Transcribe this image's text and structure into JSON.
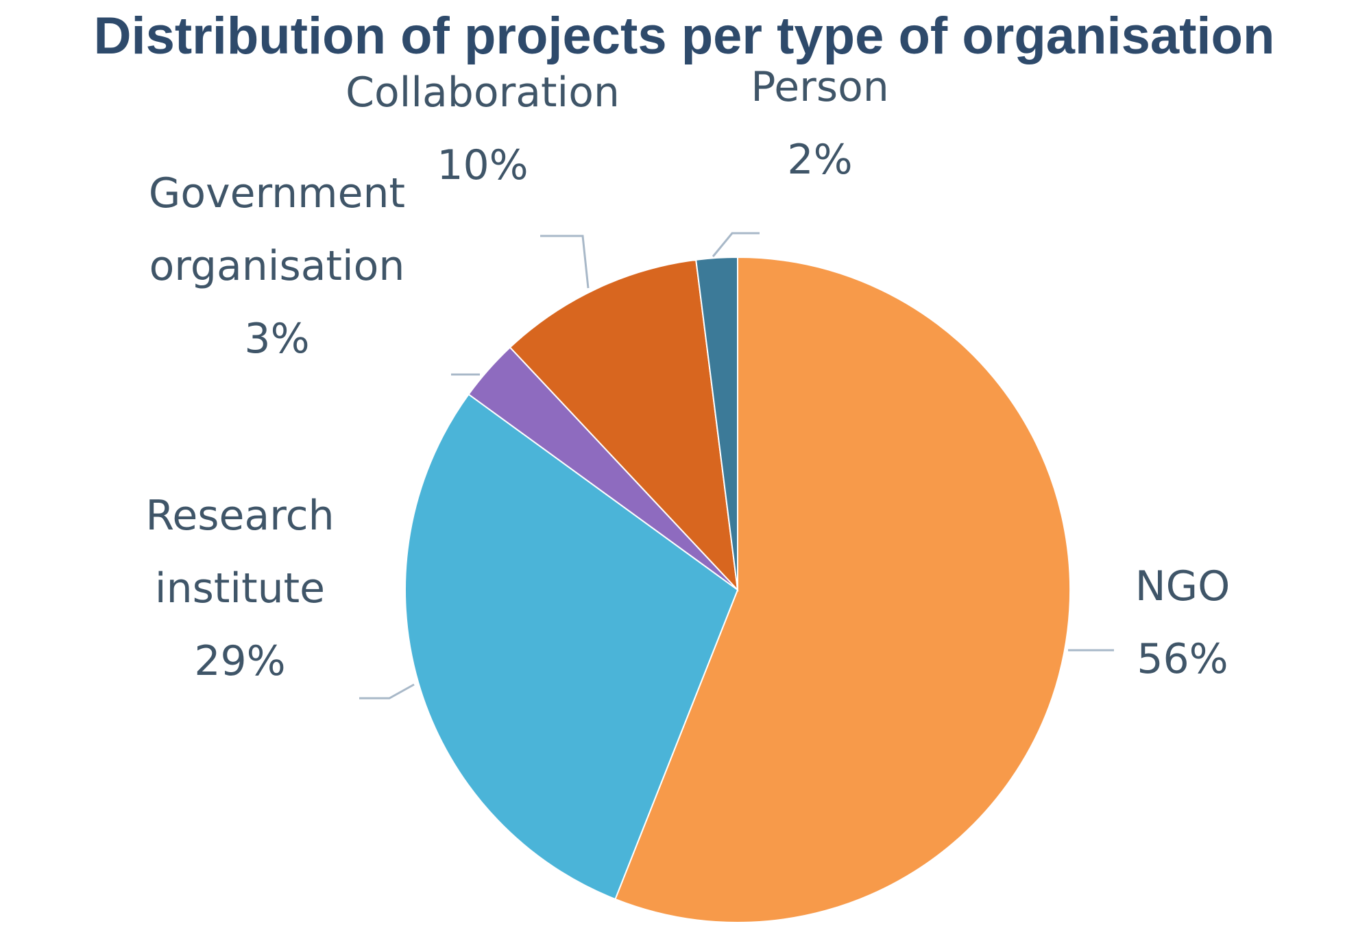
{
  "chart_data": {
    "type": "pie",
    "title": "Distribution of projects per type of organisation",
    "slices": [
      {
        "name": "NGO",
        "value": 56,
        "label_lines": [
          "NGO"
        ],
        "percent_label": "56%",
        "color": "#f79a4a"
      },
      {
        "name": "Research institute",
        "value": 29,
        "label_lines": [
          "Research",
          "institute"
        ],
        "percent_label": "29%",
        "color": "#4bb4d8"
      },
      {
        "name": "Government organisation",
        "value": 3,
        "label_lines": [
          "Government",
          "organisation"
        ],
        "percent_label": "3%",
        "color": "#8e6bbf"
      },
      {
        "name": "Collaboration",
        "value": 10,
        "label_lines": [
          "Collaboration"
        ],
        "percent_label": "10%",
        "color": "#d8661f"
      },
      {
        "name": "Person",
        "value": 2,
        "label_lines": [
          "Person"
        ],
        "percent_label": "2%",
        "color": "#3c7a98"
      }
    ],
    "start_angle": "12 o'clock",
    "direction": "clockwise",
    "legend": "none"
  }
}
